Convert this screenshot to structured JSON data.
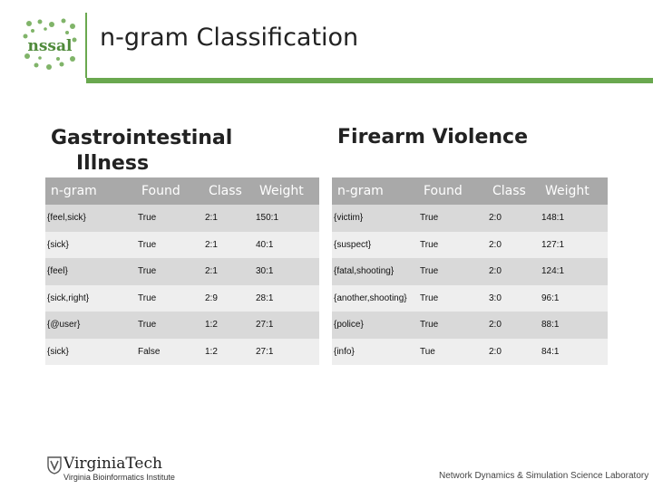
{
  "slide": {
    "title": "n-gram Classification",
    "left_heading_line1": "Gastrointestinal",
    "left_heading_line2": "Illness",
    "right_heading": "Firearm Violence"
  },
  "logo": {
    "text": "nssal",
    "color": "#6aa84f"
  },
  "accent_color": "#6aa84f",
  "header_color": "#a9a9a9",
  "gi_table": {
    "headers": [
      "n-gram",
      "Found",
      "Class",
      "Weight"
    ],
    "rows": [
      [
        "{feel,sick}",
        "True",
        "2:1",
        "150:1"
      ],
      [
        "{sick}",
        "True",
        "2:1",
        "40:1"
      ],
      [
        "{feel}",
        "True",
        "2:1",
        "30:1"
      ],
      [
        "{sick,right}",
        "True",
        "2:9",
        "28:1"
      ],
      [
        "{@user}",
        "True",
        "1:2",
        "27:1"
      ],
      [
        "{sick}",
        "False",
        "1:2",
        "27:1"
      ]
    ]
  },
  "fv_table": {
    "headers": [
      "n-gram",
      "Found",
      "Class",
      "Weight"
    ],
    "rows": [
      [
        "{victim}",
        "True",
        "2:0",
        "148:1"
      ],
      [
        "{suspect}",
        "True",
        "2:0",
        "127:1"
      ],
      [
        "{fatal,shooting}",
        "True",
        "2:0",
        "124:1"
      ],
      [
        "{another,shooting}",
        "True",
        "3:0",
        "96:1"
      ],
      [
        "{police}",
        "True",
        "2:0",
        "88:1"
      ],
      [
        "{info}",
        "Tue",
        "2:0",
        "84:1"
      ]
    ]
  },
  "footer": {
    "institution": "VirginiaTech",
    "institute": "Virginia Bioinformatics Institute",
    "lab": "Network Dynamics & Simulation Science Laboratory"
  }
}
